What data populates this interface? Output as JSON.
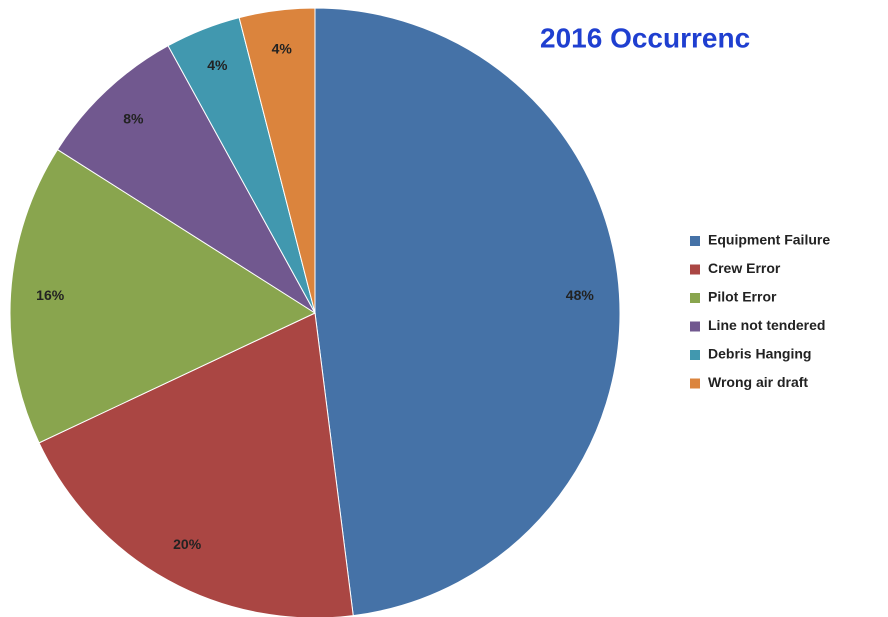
{
  "chart_data": {
    "type": "pie",
    "title": "2016 Occurrenc",
    "categories": [
      "Equipment Failure",
      "Crew Error",
      "Pilot Error",
      "Line not tendered",
      "Debris Hanging",
      "Wrong air draft"
    ],
    "values": [
      48,
      20,
      16,
      8,
      4,
      4
    ],
    "value_labels": [
      "48%",
      "20%",
      "16%",
      "8%",
      "4%",
      "4%"
    ],
    "colors": [
      "#4572a7",
      "#aa4643",
      "#89a54e",
      "#71588f",
      "#4198af",
      "#db843d"
    ],
    "legend": "right"
  }
}
